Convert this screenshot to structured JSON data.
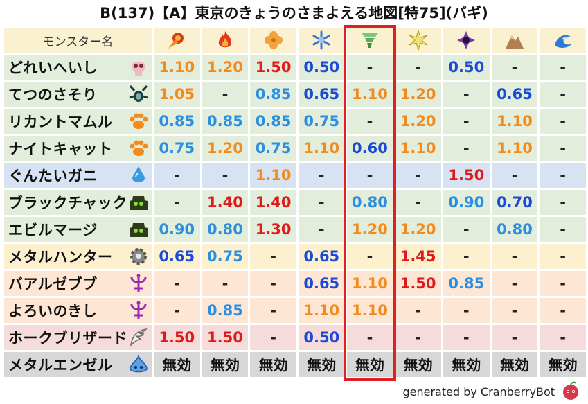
{
  "title": "B(137)【A】東京のきょうのさまよえる地図[特75](バギ)",
  "header": {
    "name_label": "モンスター名",
    "icons": [
      "fire-ball-icon",
      "flame-icon",
      "clover-icon",
      "snowflake-icon",
      "tornado-icon",
      "star-burst-icon",
      "purple-spiral-icon",
      "rock-mountain-icon",
      "wave-icon"
    ]
  },
  "colors": {
    "beast": "#e2eedb",
    "water": "#d7e3f3",
    "zombie": "#e2eedb",
    "material": "#fcf0cf",
    "demon": "#fde6d4",
    "bird": "#f6dbdb",
    "slime": "#d7d7d7",
    "header": "#f9f1cf",
    "highlight": "#e02020"
  },
  "rows": [
    {
      "name": "どれいへいし",
      "icon": "skull-icon",
      "bg": "beast",
      "cells": [
        [
          "1.10",
          "orange"
        ],
        [
          "1.20",
          "orange"
        ],
        [
          "1.50",
          "red"
        ],
        [
          "0.50",
          "blue"
        ],
        [
          "-",
          "dash"
        ],
        [
          "-",
          "dash"
        ],
        [
          "0.50",
          "blue"
        ],
        [
          "-",
          "dash"
        ],
        [
          "-",
          "dash"
        ]
      ]
    },
    {
      "name": "てつのさそり",
      "icon": "insect-icon",
      "bg": "beast",
      "cells": [
        [
          "1.05",
          "orange"
        ],
        [
          "-",
          "dash"
        ],
        [
          "0.85",
          "lblue"
        ],
        [
          "0.65",
          "blue"
        ],
        [
          "1.10",
          "orange"
        ],
        [
          "1.20",
          "orange"
        ],
        [
          "-",
          "dash"
        ],
        [
          "0.65",
          "blue"
        ],
        [
          "-",
          "dash"
        ]
      ]
    },
    {
      "name": "リカントマムル",
      "icon": "paw-icon",
      "bg": "beast",
      "cells": [
        [
          "0.85",
          "lblue"
        ],
        [
          "0.85",
          "lblue"
        ],
        [
          "0.85",
          "lblue"
        ],
        [
          "0.75",
          "lblue"
        ],
        [
          "-",
          "dash"
        ],
        [
          "1.20",
          "orange"
        ],
        [
          "-",
          "dash"
        ],
        [
          "1.10",
          "orange"
        ],
        [
          "-",
          "dash"
        ]
      ]
    },
    {
      "name": "ナイトキャット",
      "icon": "paw-icon",
      "bg": "beast",
      "cells": [
        [
          "0.75",
          "lblue"
        ],
        [
          "1.20",
          "orange"
        ],
        [
          "0.75",
          "lblue"
        ],
        [
          "1.10",
          "orange"
        ],
        [
          "0.60",
          "blue"
        ],
        [
          "1.10",
          "orange"
        ],
        [
          "-",
          "dash"
        ],
        [
          "1.10",
          "orange"
        ],
        [
          "-",
          "dash"
        ]
      ]
    },
    {
      "name": "ぐんたいガニ",
      "icon": "water-drop-icon",
      "bg": "water",
      "cells": [
        [
          "-",
          "dash"
        ],
        [
          "-",
          "dash"
        ],
        [
          "1.10",
          "orange"
        ],
        [
          "-",
          "dash"
        ],
        [
          "-",
          "dash"
        ],
        [
          "-",
          "dash"
        ],
        [
          "1.50",
          "red"
        ],
        [
          "-",
          "dash"
        ],
        [
          "-",
          "dash"
        ]
      ]
    },
    {
      "name": "ブラックチャック",
      "icon": "green-ghost-icon",
      "bg": "zombie",
      "cells": [
        [
          "-",
          "dash"
        ],
        [
          "1.40",
          "red"
        ],
        [
          "1.40",
          "red"
        ],
        [
          "-",
          "dash"
        ],
        [
          "0.80",
          "lblue"
        ],
        [
          "-",
          "dash"
        ],
        [
          "0.90",
          "lblue"
        ],
        [
          "0.70",
          "blue"
        ],
        [
          "-",
          "dash"
        ]
      ]
    },
    {
      "name": "エビルマージ",
      "icon": "green-ghost-icon",
      "bg": "zombie",
      "cells": [
        [
          "0.90",
          "lblue"
        ],
        [
          "0.80",
          "lblue"
        ],
        [
          "1.30",
          "red"
        ],
        [
          "-",
          "dash"
        ],
        [
          "1.20",
          "orange"
        ],
        [
          "1.20",
          "orange"
        ],
        [
          "-",
          "dash"
        ],
        [
          "0.80",
          "lblue"
        ],
        [
          "-",
          "dash"
        ]
      ]
    },
    {
      "name": "メタルハンター",
      "icon": "gear-icon",
      "bg": "material",
      "cells": [
        [
          "0.65",
          "blue"
        ],
        [
          "0.75",
          "lblue"
        ],
        [
          "-",
          "dash"
        ],
        [
          "0.65",
          "blue"
        ],
        [
          "-",
          "dash"
        ],
        [
          "1.45",
          "red"
        ],
        [
          "-",
          "dash"
        ],
        [
          "-",
          "dash"
        ],
        [
          "-",
          "dash"
        ]
      ]
    },
    {
      "name": "バアルゼブブ",
      "icon": "trident-icon",
      "bg": "demon",
      "cells": [
        [
          "-",
          "dash"
        ],
        [
          "-",
          "dash"
        ],
        [
          "-",
          "dash"
        ],
        [
          "0.65",
          "blue"
        ],
        [
          "1.10",
          "orange"
        ],
        [
          "1.50",
          "red"
        ],
        [
          "0.85",
          "lblue"
        ],
        [
          "-",
          "dash"
        ],
        [
          "-",
          "dash"
        ]
      ]
    },
    {
      "name": "よろいのきし",
      "icon": "trident-icon",
      "bg": "demon",
      "cells": [
        [
          "-",
          "dash"
        ],
        [
          "0.85",
          "lblue"
        ],
        [
          "-",
          "dash"
        ],
        [
          "1.10",
          "orange"
        ],
        [
          "1.10",
          "orange"
        ],
        [
          "-",
          "dash"
        ],
        [
          "-",
          "dash"
        ],
        [
          "-",
          "dash"
        ],
        [
          "-",
          "dash"
        ]
      ]
    },
    {
      "name": "ホークブリザード",
      "icon": "wing-icon",
      "bg": "bird",
      "cells": [
        [
          "1.50",
          "red"
        ],
        [
          "1.50",
          "red"
        ],
        [
          "-",
          "dash"
        ],
        [
          "0.50",
          "blue"
        ],
        [
          "-",
          "dash"
        ],
        [
          "-",
          "dash"
        ],
        [
          "-",
          "dash"
        ],
        [
          "-",
          "dash"
        ],
        [
          "-",
          "dash"
        ]
      ]
    },
    {
      "name": "メタルエンゼル",
      "icon": "slime-icon",
      "bg": "slime",
      "cells": [
        [
          "無効",
          "inv"
        ],
        [
          "無効",
          "inv"
        ],
        [
          "無効",
          "inv"
        ],
        [
          "無効",
          "inv"
        ],
        [
          "無効",
          "inv"
        ],
        [
          "無効",
          "inv"
        ],
        [
          "無効",
          "inv"
        ],
        [
          "無効",
          "inv"
        ],
        [
          "無効",
          "inv"
        ]
      ]
    }
  ],
  "footer": {
    "text": "generated by CranberryBot",
    "logo_icon": "cranberry-bot-icon"
  }
}
